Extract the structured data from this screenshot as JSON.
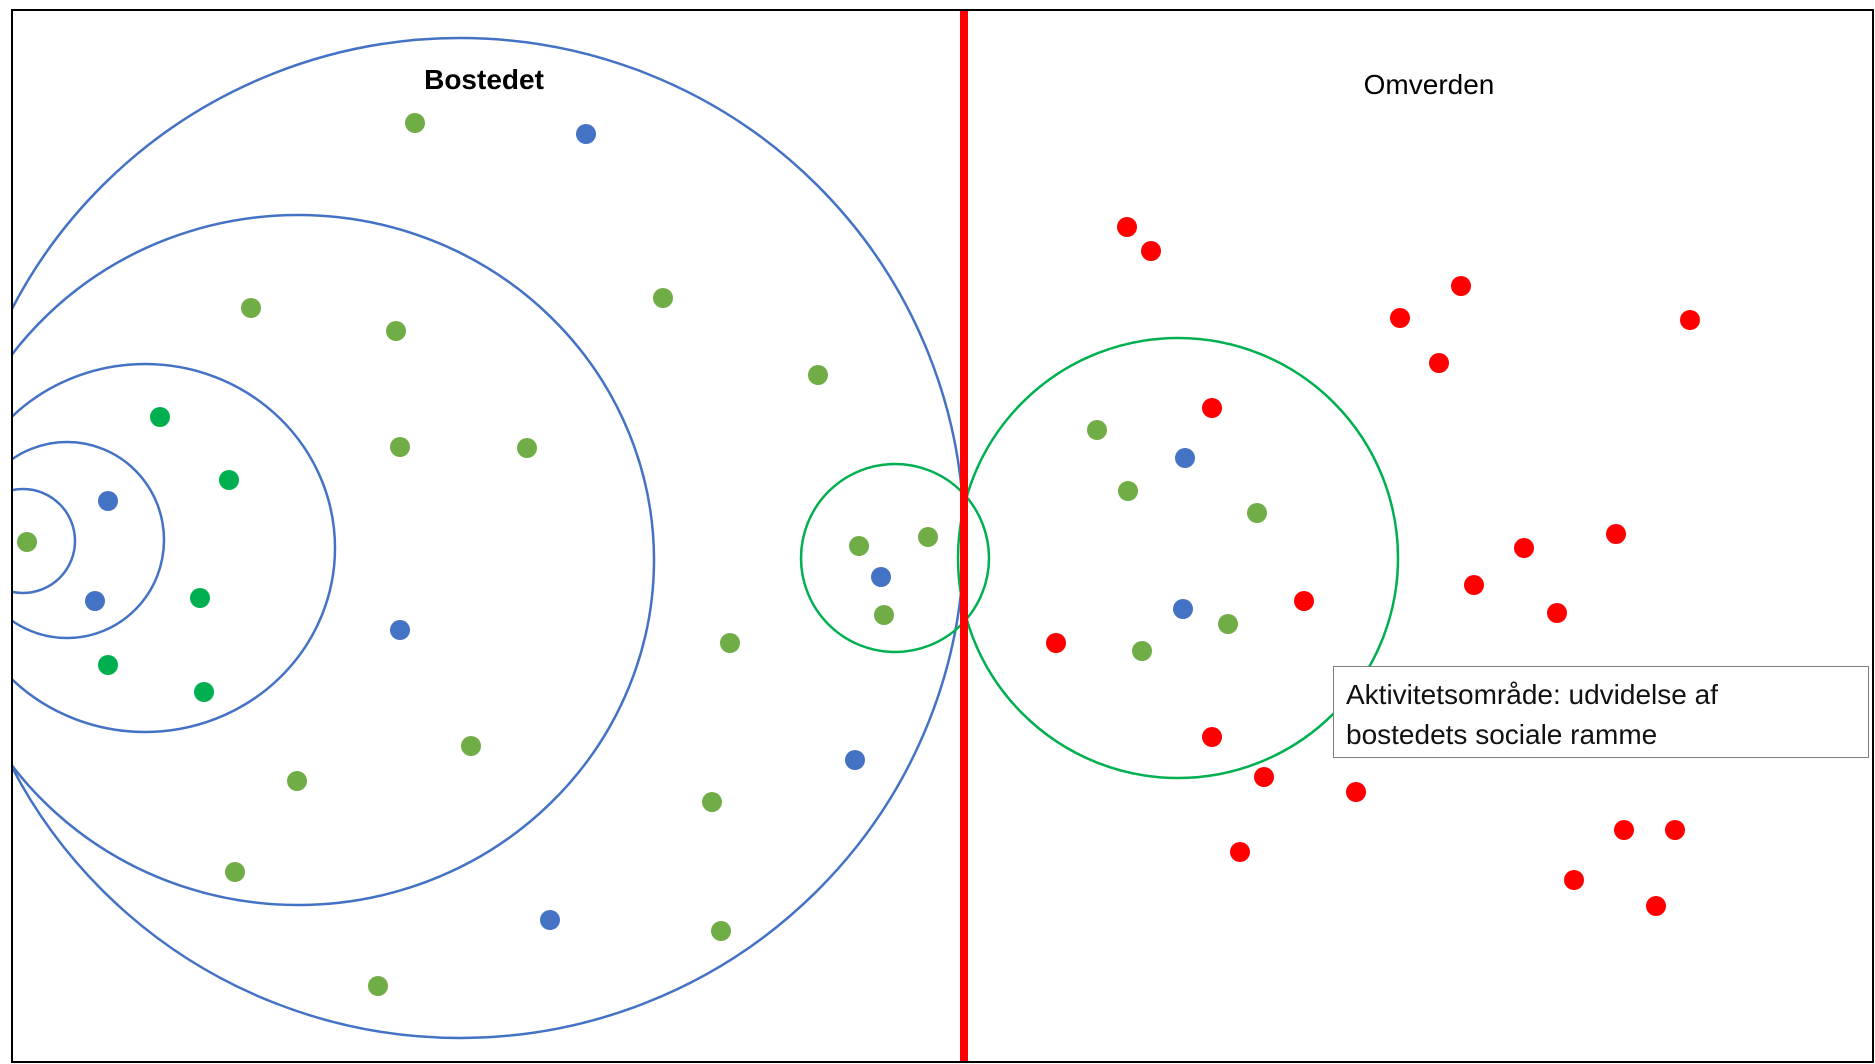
{
  "labels": {
    "left_zone": "Bostedet",
    "right_zone": "Omverden",
    "callout_line1": "Aktivitetsområde: udvidelse af",
    "callout_line2": "bostedets sociale ramme"
  },
  "colors": {
    "frame": "#000000",
    "divider": "#ff0000",
    "ring_blue": "#4472c4",
    "ring_green": "#00b050",
    "dot_lightgreen": "#70ad47",
    "dot_darkgreen": "#00b050",
    "dot_blue": "#4472c4",
    "dot_red": "#ff0000"
  }
}
